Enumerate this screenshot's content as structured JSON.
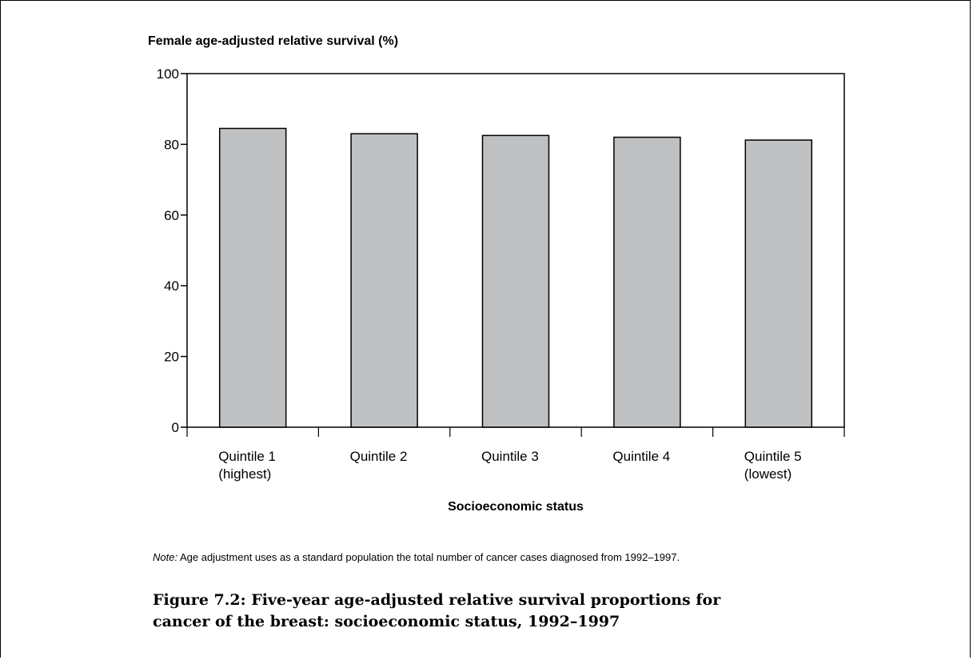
{
  "note": {
    "prefix": "Note:",
    "text": " Age adjustment uses as a standard population the total number of cancer cases diagnosed from 1992–1997."
  },
  "caption": "Figure 7.2: Five-year age-adjusted relative survival proportions for cancer of the breast: socioeconomic status, 1992–1997",
  "chart_data": {
    "type": "bar",
    "ylabel": "Female age-adjusted relative survival (%)",
    "xlabel": "Socioeconomic status",
    "categories": [
      [
        "Quintile 1",
        "(highest)"
      ],
      [
        "Quintile 2"
      ],
      [
        "Quintile 3"
      ],
      [
        "Quintile 4"
      ],
      [
        "Quintile 5",
        "(lowest)"
      ]
    ],
    "values": [
      84.5,
      83.0,
      82.5,
      82.0,
      81.2
    ],
    "ylim": [
      0,
      100
    ],
    "yticks": [
      "0",
      "20",
      "40",
      "60",
      "80",
      "100"
    ],
    "grid": false,
    "bar_color": "#bfc0c2"
  }
}
